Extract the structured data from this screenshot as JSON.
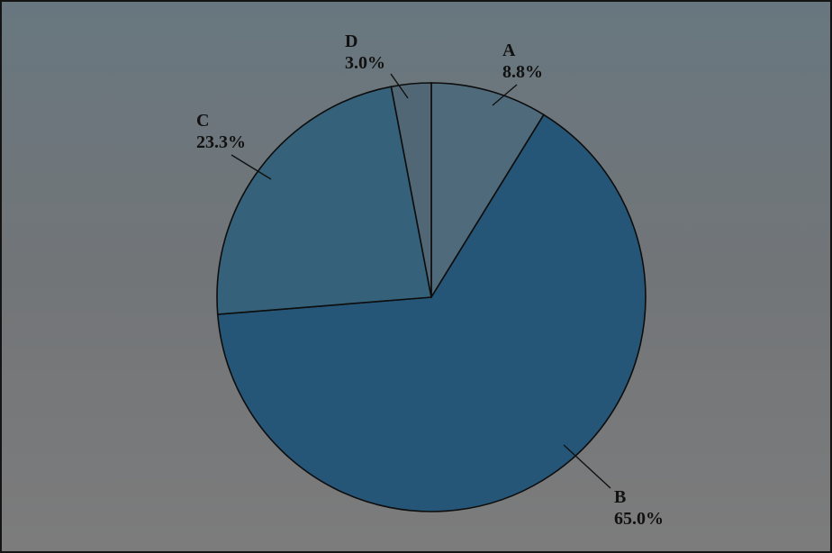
{
  "chart_data": {
    "type": "pie",
    "title": "",
    "start_angle_deg": 90,
    "direction": "clockwise",
    "slices": [
      {
        "label": "A",
        "value": 8.8,
        "value_text": "8.8%",
        "color": "#4e6a7b"
      },
      {
        "label": "B",
        "value": 65.0,
        "value_text": "65.0%",
        "color": "#265677"
      },
      {
        "label": "C",
        "value": 23.3,
        "value_text": "23.3%",
        "color": "#35627a"
      },
      {
        "label": "D",
        "value": 3.0,
        "value_text": "3.0%",
        "color": "#516775"
      }
    ]
  }
}
